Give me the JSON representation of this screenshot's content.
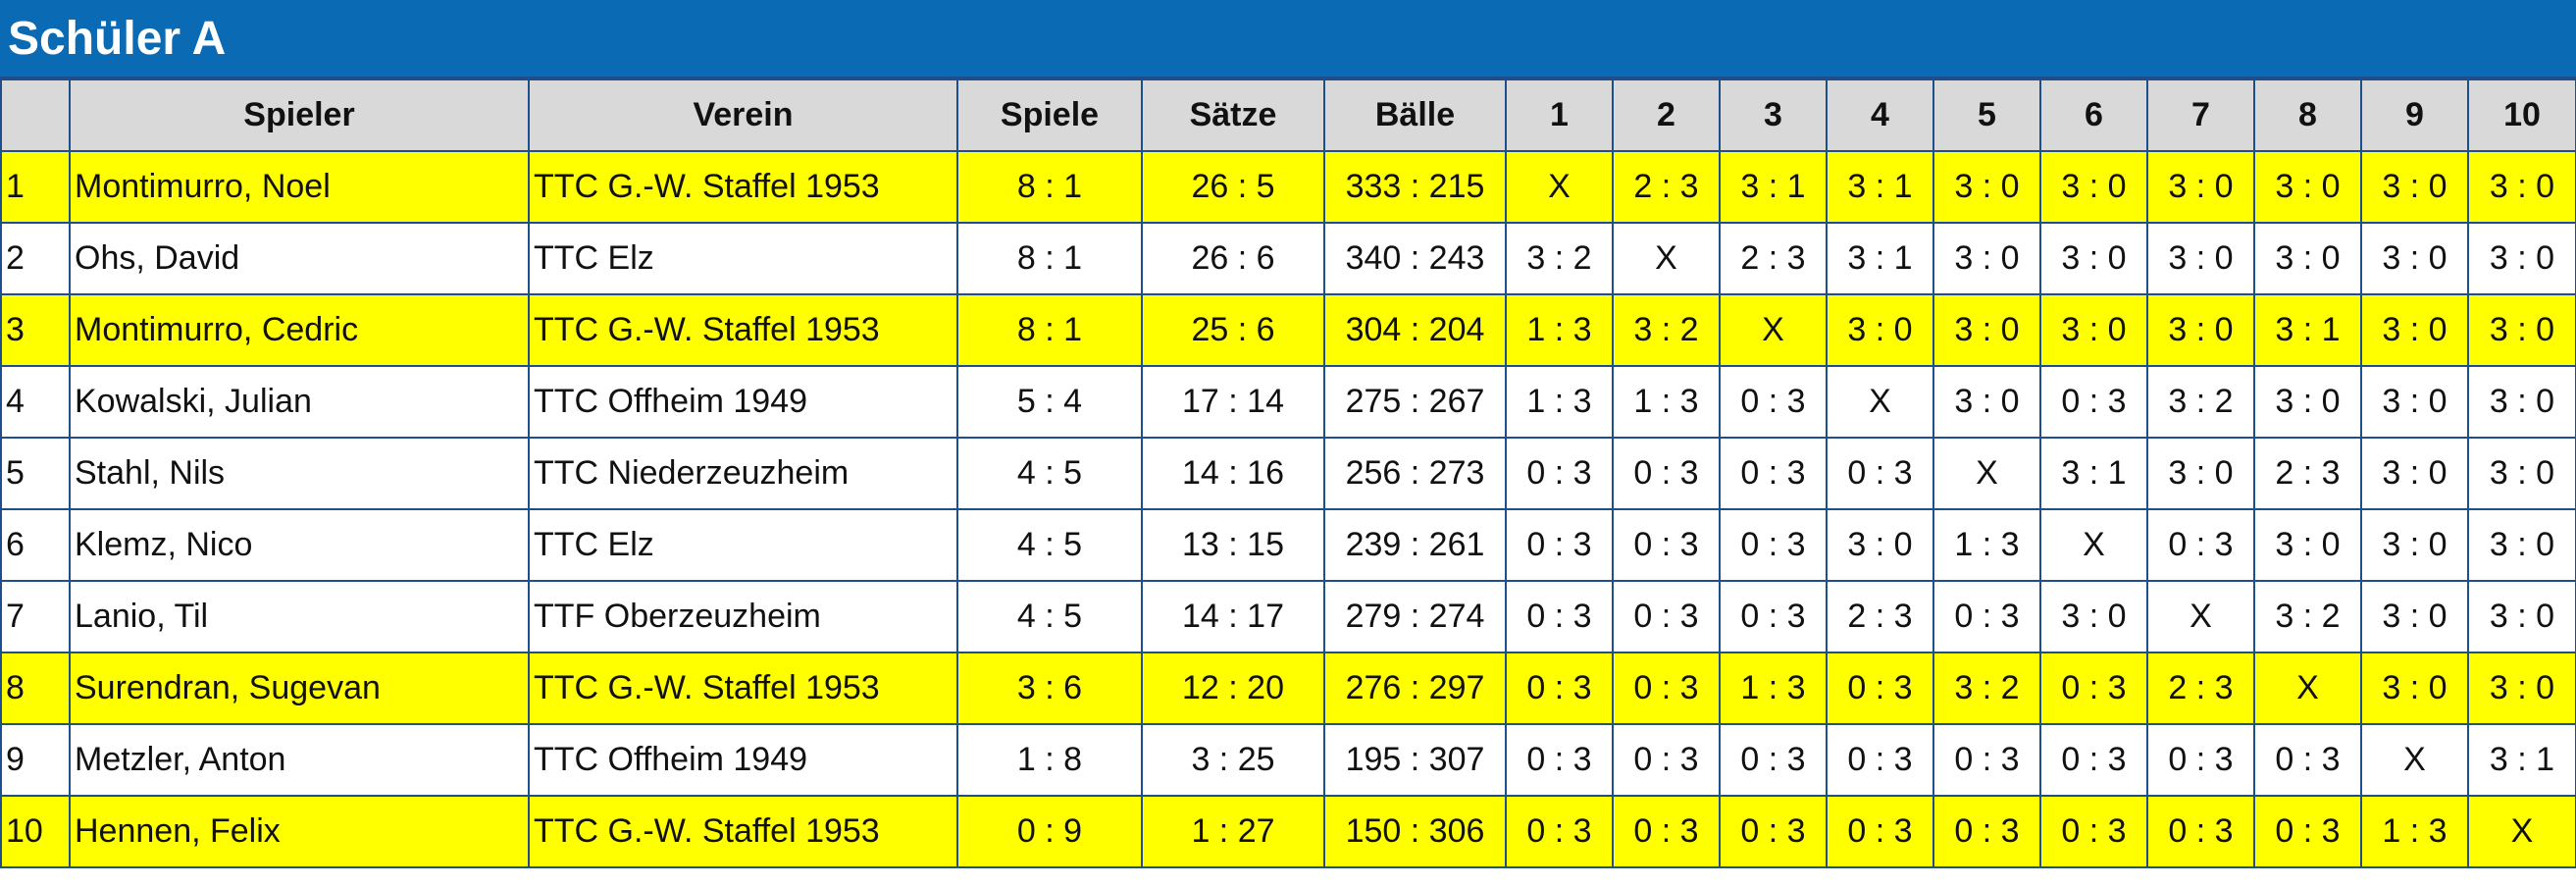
{
  "title": "Schüler A",
  "colors": {
    "title_bg": "#0a6ab4",
    "title_text": "#ffffff",
    "header_bg": "#d9d9d9",
    "highlight_bg": "#ffff00",
    "grid_line": "#1f4e8c"
  },
  "headers": {
    "rank": "",
    "spieler": "Spieler",
    "verein": "Verein",
    "spiele": "Spiele",
    "saetze": "Sätze",
    "baelle": "Bälle",
    "results": [
      "1",
      "2",
      "3",
      "4",
      "5",
      "6",
      "7",
      "8",
      "9",
      "10"
    ]
  },
  "rows": [
    {
      "rank": "1",
      "name": "Montimurro, Noel",
      "club": "TTC G.-W. Staffel 1953",
      "spiele": "8 : 1",
      "saetze": "26 : 5",
      "baelle": "333 : 215",
      "highlight": true,
      "results": [
        "X",
        "2 : 3",
        "3 : 1",
        "3 : 1",
        "3 : 0",
        "3 : 0",
        "3 : 0",
        "3 : 0",
        "3 : 0",
        "3 : 0"
      ]
    },
    {
      "rank": "2",
      "name": "Ohs, David",
      "club": "TTC Elz",
      "spiele": "8 : 1",
      "saetze": "26 : 6",
      "baelle": "340 : 243",
      "highlight": false,
      "results": [
        "3 : 2",
        "X",
        "2 : 3",
        "3 : 1",
        "3 : 0",
        "3 : 0",
        "3 : 0",
        "3 : 0",
        "3 : 0",
        "3 : 0"
      ]
    },
    {
      "rank": "3",
      "name": "Montimurro, Cedric",
      "club": "TTC G.-W. Staffel 1953",
      "spiele": "8 : 1",
      "saetze": "25 : 6",
      "baelle": "304 : 204",
      "highlight": true,
      "results": [
        "1 : 3",
        "3 : 2",
        "X",
        "3 : 0",
        "3 : 0",
        "3 : 0",
        "3 : 0",
        "3 : 1",
        "3 : 0",
        "3 : 0"
      ]
    },
    {
      "rank": "4",
      "name": "Kowalski, Julian",
      "club": "TTC Offheim 1949",
      "spiele": "5 : 4",
      "saetze": "17 : 14",
      "baelle": "275 : 267",
      "highlight": false,
      "results": [
        "1 : 3",
        "1 : 3",
        "0 : 3",
        "X",
        "3 : 0",
        "0 : 3",
        "3 : 2",
        "3 : 0",
        "3 : 0",
        "3 : 0"
      ]
    },
    {
      "rank": "5",
      "name": "Stahl, Nils",
      "club": "TTC Niederzeuzheim",
      "spiele": "4 : 5",
      "saetze": "14 : 16",
      "baelle": "256 : 273",
      "highlight": false,
      "results": [
        "0 : 3",
        "0 : 3",
        "0 : 3",
        "0 : 3",
        "X",
        "3 : 1",
        "3 : 0",
        "2 : 3",
        "3 : 0",
        "3 : 0"
      ]
    },
    {
      "rank": "6",
      "name": "Klemz, Nico",
      "club": "TTC Elz",
      "spiele": "4 : 5",
      "saetze": "13 : 15",
      "baelle": "239 : 261",
      "highlight": false,
      "results": [
        "0 : 3",
        "0 : 3",
        "0 : 3",
        "3 : 0",
        "1 : 3",
        "X",
        "0 : 3",
        "3 : 0",
        "3 : 0",
        "3 : 0"
      ]
    },
    {
      "rank": "7",
      "name": "Lanio, Til",
      "club": "TTF Oberzeuzheim",
      "spiele": "4 : 5",
      "saetze": "14 : 17",
      "baelle": "279 : 274",
      "highlight": false,
      "results": [
        "0 : 3",
        "0 : 3",
        "0 : 3",
        "2 : 3",
        "0 : 3",
        "3 : 0",
        "X",
        "3 : 2",
        "3 : 0",
        "3 : 0"
      ]
    },
    {
      "rank": "8",
      "name": "Surendran, Sugevan",
      "club": "TTC G.-W. Staffel 1953",
      "spiele": "3 : 6",
      "saetze": "12 : 20",
      "baelle": "276 : 297",
      "highlight": true,
      "results": [
        "0 : 3",
        "0 : 3",
        "1 : 3",
        "0 : 3",
        "3 : 2",
        "0 : 3",
        "2 : 3",
        "X",
        "3 : 0",
        "3 : 0"
      ]
    },
    {
      "rank": "9",
      "name": "Metzler, Anton",
      "club": "TTC Offheim 1949",
      "spiele": "1 : 8",
      "saetze": "3 : 25",
      "baelle": "195 : 307",
      "highlight": false,
      "results": [
        "0 : 3",
        "0 : 3",
        "0 : 3",
        "0 : 3",
        "0 : 3",
        "0 : 3",
        "0 : 3",
        "0 : 3",
        "X",
        "3 : 1"
      ]
    },
    {
      "rank": "10",
      "name": "Hennen, Felix",
      "club": "TTC G.-W. Staffel 1953",
      "spiele": "0 : 9",
      "saetze": "1 : 27",
      "baelle": "150 : 306",
      "highlight": true,
      "results": [
        "0 : 3",
        "0 : 3",
        "0 : 3",
        "0 : 3",
        "0 : 3",
        "0 : 3",
        "0 : 3",
        "0 : 3",
        "1 : 3",
        "X"
      ]
    }
  ]
}
